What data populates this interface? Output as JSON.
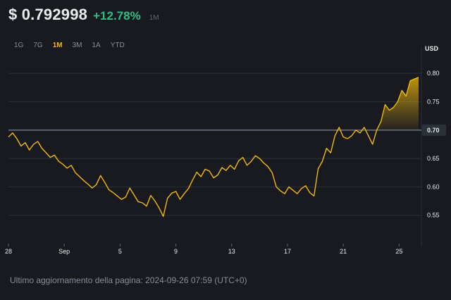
{
  "header": {
    "price": "$ 0.792998",
    "change": "+12.78%",
    "period": "1M"
  },
  "tabs": [
    {
      "label": "1G",
      "active": false
    },
    {
      "label": "7G",
      "active": false
    },
    {
      "label": "1M",
      "active": true
    },
    {
      "label": "3M",
      "active": false
    },
    {
      "label": "1A",
      "active": false
    },
    {
      "label": "YTD",
      "active": false
    }
  ],
  "footer": {
    "text": "Ultimo aggiornamento della pagina: 2024-09-26 07:59 (UTC+0)"
  },
  "colors": {
    "line": "#f0b90b",
    "positive": "#2ebd85",
    "background": "#181a20"
  },
  "chart_data": {
    "type": "line",
    "unit_label": "USD",
    "grid": true,
    "ylim": [
      0.5,
      0.83
    ],
    "yticks": [
      0.8,
      0.75,
      0.7,
      0.65,
      0.6,
      0.55
    ],
    "xlim": [
      0,
      29.6
    ],
    "xticks": [
      {
        "label": "28",
        "day": 0
      },
      {
        "label": "Sep",
        "day": 4
      },
      {
        "label": "5",
        "day": 8
      },
      {
        "label": "9",
        "day": 12
      },
      {
        "label": "13",
        "day": 16
      },
      {
        "label": "17",
        "day": 20
      },
      {
        "label": "21",
        "day": 24
      },
      {
        "label": "25",
        "day": 28
      }
    ],
    "reference_line": 0.7,
    "reference_label": "0.70",
    "series": [
      {
        "x": [
          0,
          0.3,
          0.6,
          0.9,
          1.2,
          1.5,
          1.8,
          2.1,
          2.4,
          2.7,
          3.0,
          3.3,
          3.6,
          3.9,
          4.2,
          4.5,
          4.8,
          5.1,
          5.4,
          5.7,
          6.0,
          6.3,
          6.6,
          6.9,
          7.2,
          7.5,
          7.8,
          8.1,
          8.4,
          8.7,
          9.0,
          9.3,
          9.6,
          9.9,
          10.2,
          10.5,
          10.8,
          11.1,
          11.4,
          11.7,
          12.0,
          12.3,
          12.6,
          12.9,
          13.2,
          13.5,
          13.8,
          14.1,
          14.4,
          14.7,
          15.0,
          15.3,
          15.6,
          15.9,
          16.2,
          16.5,
          16.8,
          17.1,
          17.4,
          17.7,
          18.0,
          18.3,
          18.6,
          18.9,
          19.2,
          19.5,
          19.8,
          20.1,
          20.4,
          20.7,
          21.0,
          21.3,
          21.6,
          21.9,
          22.2,
          22.5,
          22.8,
          23.1,
          23.4,
          23.7,
          24.0,
          24.3,
          24.6,
          24.9,
          25.2,
          25.5,
          25.8,
          26.1,
          26.4,
          26.7,
          27.0,
          27.3,
          27.6,
          27.9,
          28.2,
          28.5,
          28.8,
          29.1,
          29.4
        ],
        "y": [
          0.688,
          0.695,
          0.685,
          0.672,
          0.678,
          0.665,
          0.675,
          0.68,
          0.668,
          0.66,
          0.652,
          0.656,
          0.645,
          0.64,
          0.633,
          0.638,
          0.625,
          0.618,
          0.611,
          0.605,
          0.598,
          0.604,
          0.62,
          0.608,
          0.595,
          0.59,
          0.584,
          0.578,
          0.582,
          0.598,
          0.586,
          0.574,
          0.572,
          0.566,
          0.585,
          0.575,
          0.563,
          0.548,
          0.58,
          0.589,
          0.592,
          0.578,
          0.588,
          0.597,
          0.612,
          0.626,
          0.618,
          0.631,
          0.628,
          0.616,
          0.621,
          0.634,
          0.629,
          0.638,
          0.631,
          0.646,
          0.652,
          0.638,
          0.645,
          0.655,
          0.65,
          0.642,
          0.636,
          0.625,
          0.6,
          0.593,
          0.588,
          0.6,
          0.594,
          0.588,
          0.597,
          0.602,
          0.59,
          0.584,
          0.632,
          0.645,
          0.668,
          0.66,
          0.69,
          0.705,
          0.688,
          0.685,
          0.69,
          0.7,
          0.695,
          0.705,
          0.69,
          0.675,
          0.7,
          0.715,
          0.745,
          0.735,
          0.74,
          0.75,
          0.77,
          0.76,
          0.787,
          0.79,
          0.793
        ]
      }
    ]
  }
}
